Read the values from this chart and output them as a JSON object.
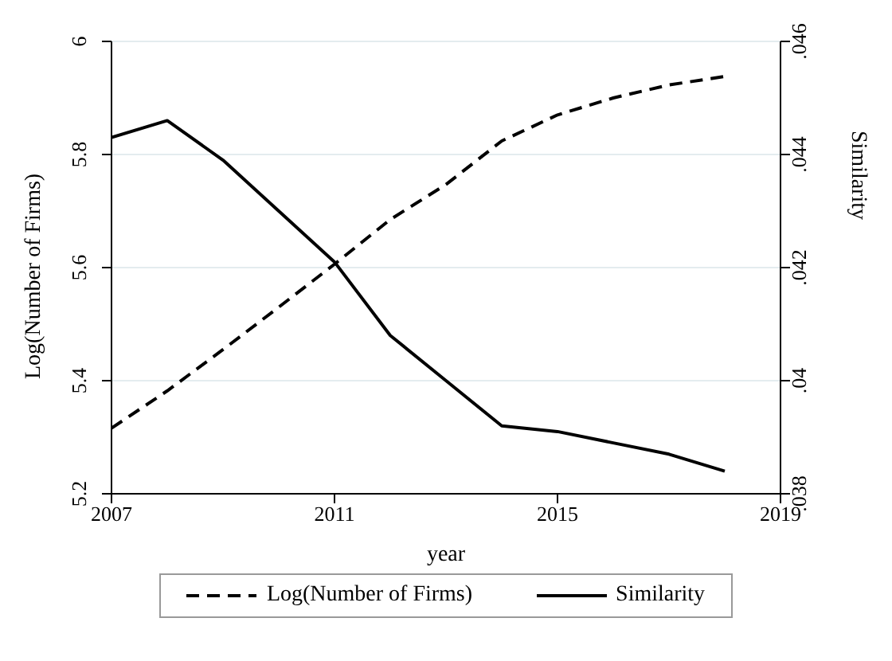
{
  "chart_data": {
    "type": "line",
    "xlabel": "year",
    "ylabel": "Log(Number of Firms)",
    "y2label": "Similarity",
    "x": [
      2007,
      2008,
      2009,
      2010,
      2011,
      2012,
      2013,
      2014,
      2015,
      2016,
      2017,
      2018
    ],
    "series": [
      {
        "name": "Log(Number of Firms)",
        "color": "#000000",
        "line_style": "dashed",
        "values": [
          5.316,
          5.382,
          5.455,
          5.53,
          5.606,
          5.685,
          5.747,
          5.824,
          5.87,
          5.9,
          5.923,
          5.938
        ]
      },
      {
        "name": "Similarity",
        "color": "#000000",
        "line_style": "solid",
        "axis": "y2",
        "values": [
          0.0443,
          0.0446,
          0.0439,
          0.043,
          0.0421,
          0.0408,
          0.04,
          0.0392,
          0.0391,
          0.0389,
          0.0387,
          0.0384
        ]
      }
    ],
    "xlim": [
      2007,
      2019
    ],
    "xticks": [
      2007,
      2011,
      2015,
      2019
    ],
    "ylim": [
      5.2,
      6
    ],
    "yticks": [
      5.2,
      5.4,
      5.6,
      5.8,
      6
    ],
    "y2lim": [
      0.038,
      0.046
    ],
    "y2ticks": [
      {
        "value": 0.038,
        "label": ".038"
      },
      {
        "value": 0.04,
        "label": ".04"
      },
      {
        "value": 0.042,
        "label": ".042"
      },
      {
        "value": 0.044,
        "label": ".044"
      },
      {
        "value": 0.046,
        "label": ".046"
      }
    ],
    "grid": "y",
    "legend": "bottom",
    "marker": "none"
  }
}
